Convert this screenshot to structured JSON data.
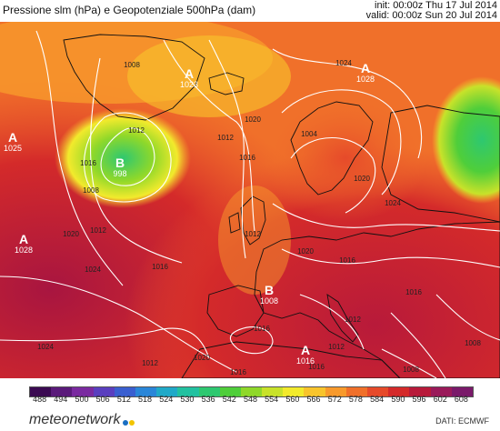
{
  "header": {
    "title": "Pressione slm (hPa) e Geopotenziale 500hPa (dam)",
    "init": "init: 00:00z Thu 17 Jul 2014",
    "valid": "valid: 00:00z Sun 20 Jul 2014"
  },
  "isobar_labels": [
    "1008",
    "1012",
    "1016",
    "1020",
    "1024",
    "1012",
    "1016",
    "1008",
    "1020",
    "1024",
    "1012",
    "1016",
    "1020",
    "1024",
    "1012",
    "1016",
    "1020",
    "1016",
    "1012",
    "1008",
    "1016",
    "1012",
    "1020",
    "1016",
    "1012",
    "1024",
    "1004",
    "1008",
    "1016"
  ],
  "pressure_centers": [
    {
      "letter": "A",
      "value": "1025"
    },
    {
      "letter": "A",
      "value": "1028"
    },
    {
      "letter": "B",
      "value": "998"
    },
    {
      "letter": "A",
      "value": "1023"
    },
    {
      "letter": "A",
      "value": "1028"
    },
    {
      "letter": "B",
      "value": "1008"
    },
    {
      "letter": "A",
      "value": "1016"
    }
  ],
  "colorbar": {
    "labels": [
      "488",
      "494",
      "500",
      "506",
      "512",
      "518",
      "524",
      "530",
      "536",
      "542",
      "548",
      "554",
      "560",
      "566",
      "572",
      "578",
      "584",
      "590",
      "596",
      "602",
      "608"
    ],
    "colors": [
      "#3b0a52",
      "#5a1a7a",
      "#7a2aa0",
      "#5a3fbf",
      "#3a5fd0",
      "#2a86d8",
      "#20a9c8",
      "#22c1a0",
      "#2ec870",
      "#4fce3a",
      "#8fd82a",
      "#c8e22a",
      "#f2ea2c",
      "#f8c42c",
      "#f89a2c",
      "#f0702a",
      "#e64a2a",
      "#d42a2a",
      "#b81a3a",
      "#9a1a5a",
      "#7a1a6a"
    ]
  },
  "footer": {
    "logo": "meteonetwork",
    "credit": "DATI: ECMWF"
  }
}
